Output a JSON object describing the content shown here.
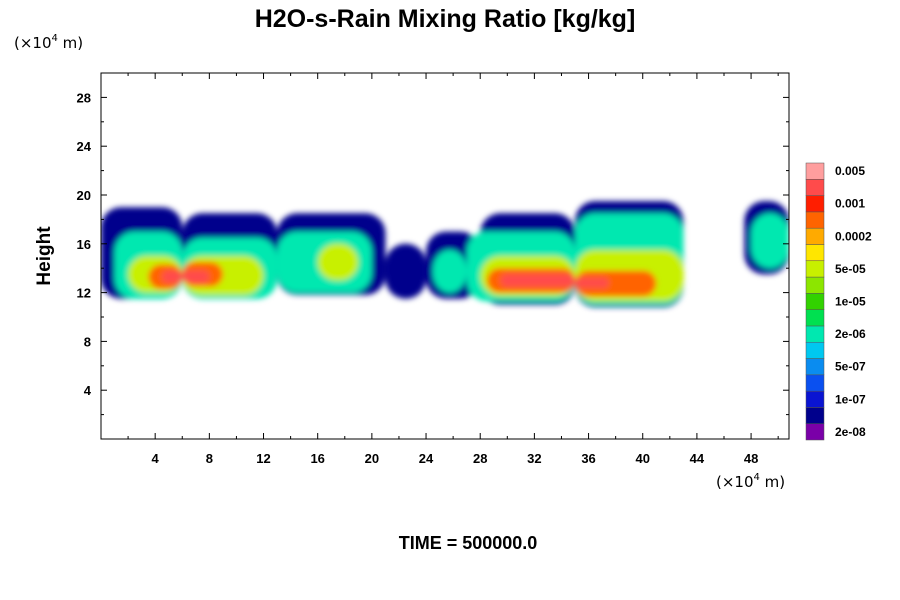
{
  "chart_data": {
    "type": "heatmap",
    "title": "H2O-s-Rain Mixing Ratio [kg/kg]",
    "ylabel": "Height",
    "x_unit": {
      "prefix": "(×10",
      "exp": "4",
      "suffix": " m)"
    },
    "y_unit": {
      "prefix": "(×10",
      "exp": "4",
      "suffix": " m)"
    },
    "xlim": [
      0,
      50.8
    ],
    "ylim": [
      0,
      30
    ],
    "x_ticks": [
      4,
      8,
      12,
      16,
      20,
      24,
      28,
      32,
      36,
      40,
      44,
      48
    ],
    "y_ticks": [
      4,
      8,
      12,
      16,
      20,
      24,
      28
    ],
    "colorbar": {
      "colors": [
        "#7a00a8",
        "#00008c",
        "#0a14d2",
        "#0a50f0",
        "#0a8cf0",
        "#00c8f0",
        "#00e8b0",
        "#00e050",
        "#32d200",
        "#8ce600",
        "#c8f000",
        "#ffe600",
        "#ffaa00",
        "#ff6400",
        "#ff1e00",
        "#ff4b4b",
        "#ff9e9e"
      ],
      "labels": [
        "2e-08",
        "1e-07",
        "5e-07",
        "2e-06",
        "1e-05",
        "5e-05",
        "0.0002",
        "0.001",
        "0.005"
      ]
    },
    "cells": [
      {
        "x": [
          0,
          6
        ],
        "y": [
          11.5,
          19
        ],
        "level": 1
      },
      {
        "x": [
          6,
          13
        ],
        "y": [
          11.5,
          18.5
        ],
        "level": 1
      },
      {
        "x": [
          13,
          21
        ],
        "y": [
          11.8,
          18.5
        ],
        "level": 1
      },
      {
        "x": [
          21,
          24
        ],
        "y": [
          11.5,
          16
        ],
        "level": 1
      },
      {
        "x": [
          24,
          28
        ],
        "y": [
          11.5,
          17
        ],
        "level": 1
      },
      {
        "x": [
          28,
          35
        ],
        "y": [
          11,
          18.5
        ],
        "level": 1
      },
      {
        "x": [
          35,
          43
        ],
        "y": [
          10.8,
          19.5
        ],
        "level": 1
      },
      {
        "x": [
          47.5,
          50.8
        ],
        "y": [
          13.5,
          19.5
        ],
        "level": 1
      },
      {
        "x": [
          1,
          6
        ],
        "y": [
          11.5,
          17
        ],
        "level": 6
      },
      {
        "x": [
          6,
          13
        ],
        "y": [
          11.5,
          16.5
        ],
        "level": 6
      },
      {
        "x": [
          13,
          20
        ],
        "y": [
          12,
          17
        ],
        "level": 6
      },
      {
        "x": [
          24.5,
          27
        ],
        "y": [
          12,
          15.5
        ],
        "level": 6
      },
      {
        "x": [
          27,
          35
        ],
        "y": [
          11.3,
          17
        ],
        "level": 6
      },
      {
        "x": [
          35,
          43
        ],
        "y": [
          11,
          18.5
        ],
        "level": 6
      },
      {
        "x": [
          48,
          50.8
        ],
        "y": [
          14,
          18.5
        ],
        "level": 6
      },
      {
        "x": [
          2,
          6
        ],
        "y": [
          12,
          15
        ],
        "level": 10
      },
      {
        "x": [
          6,
          12
        ],
        "y": [
          11.8,
          15
        ],
        "level": 10
      },
      {
        "x": [
          16,
          19
        ],
        "y": [
          13,
          16
        ],
        "level": 10
      },
      {
        "x": [
          28,
          35
        ],
        "y": [
          11.7,
          15
        ],
        "level": 10
      },
      {
        "x": [
          35,
          43
        ],
        "y": [
          11.3,
          15.5
        ],
        "level": 10
      },
      {
        "x": [
          3.5,
          6
        ],
        "y": [
          12.3,
          14.3
        ],
        "level": 13
      },
      {
        "x": [
          6,
          9
        ],
        "y": [
          12.5,
          14.5
        ],
        "level": 13
      },
      {
        "x": [
          28.5,
          35
        ],
        "y": [
          12,
          14
        ],
        "level": 13
      },
      {
        "x": [
          35,
          41
        ],
        "y": [
          11.7,
          13.8
        ],
        "level": 13
      },
      {
        "x": [
          4.5,
          6
        ],
        "y": [
          12.8,
          13.8
        ],
        "level": 15
      },
      {
        "x": [
          6,
          8
        ],
        "y": [
          12.8,
          13.8
        ],
        "level": 15
      },
      {
        "x": [
          29.5,
          35
        ],
        "y": [
          12.5,
          13.5
        ],
        "level": 15
      },
      {
        "x": [
          35,
          37.5
        ],
        "y": [
          12.4,
          13.2
        ],
        "level": 15
      }
    ],
    "time_label": "TIME = 500000.0"
  }
}
